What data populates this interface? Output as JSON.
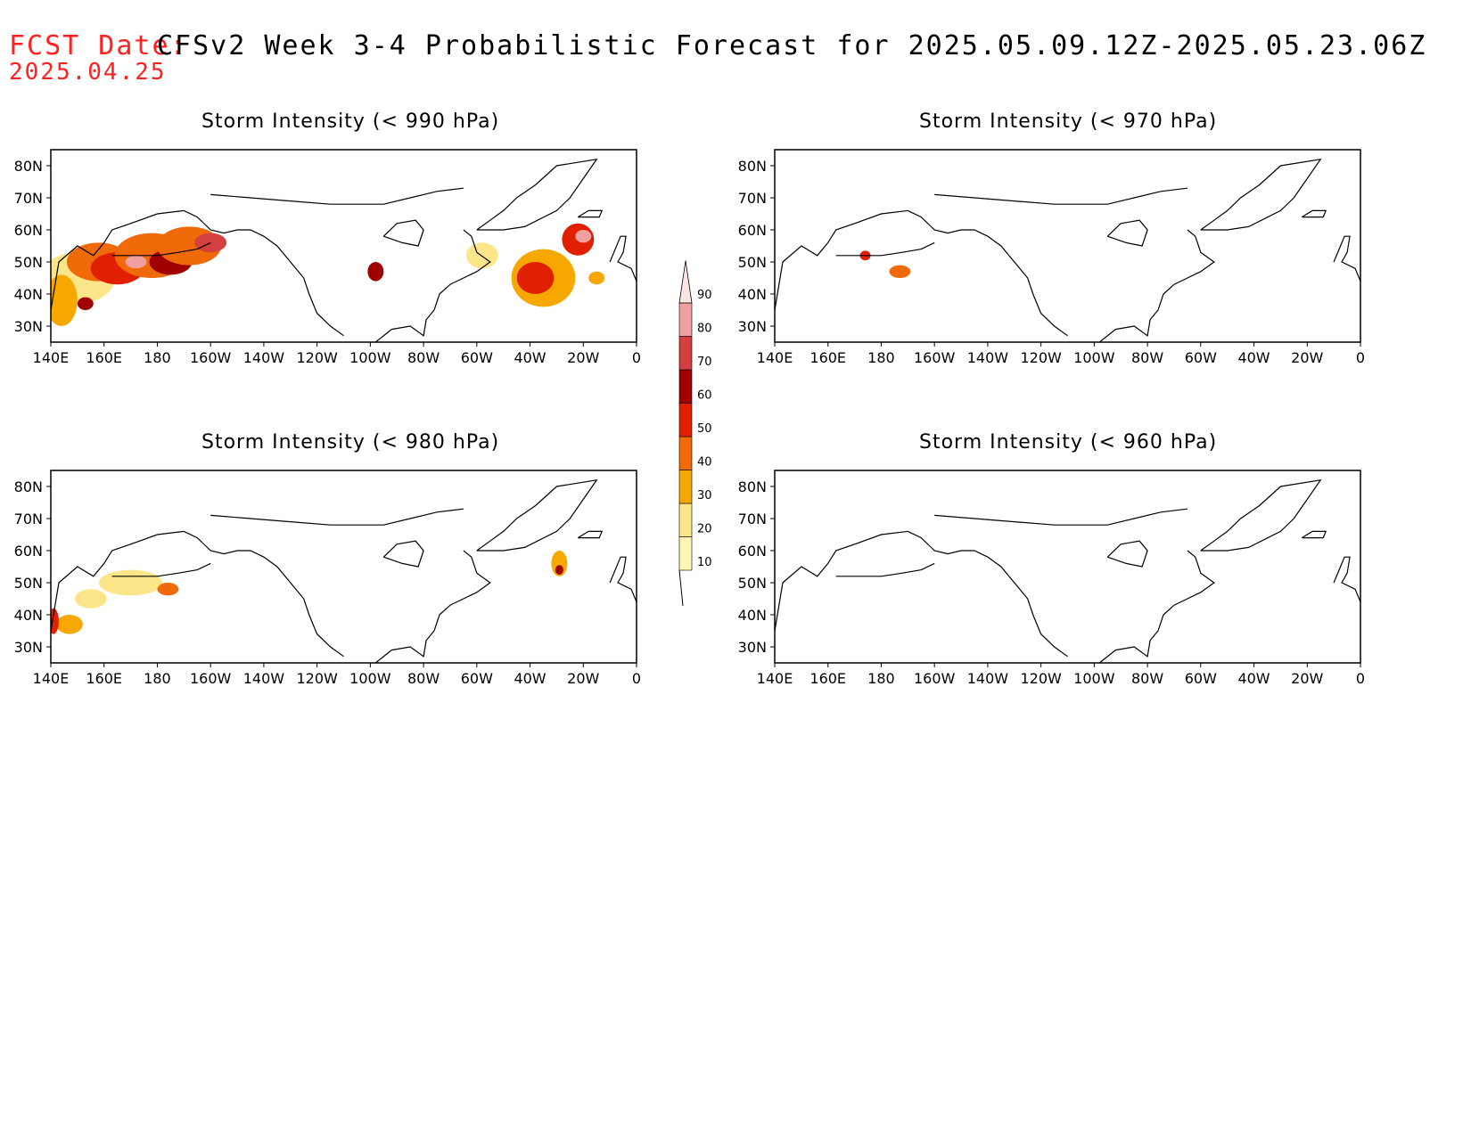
{
  "header": {
    "fcst_label": "FCST Date:",
    "fcst_date": "2025.04.25",
    "title": "CFSv2 Week 3-4 Probabilistic Forecast for 2025.05.09.12Z-2025.05.23.06Z"
  },
  "axes": {
    "lat_ticks": [
      "80N",
      "70N",
      "60N",
      "50N",
      "40N",
      "30N"
    ],
    "lat_values": [
      80,
      70,
      60,
      50,
      40,
      30
    ],
    "lon_ticks": [
      "140E",
      "160E",
      "180",
      "160W",
      "140W",
      "120W",
      "100W",
      "80W",
      "60W",
      "40W",
      "20W",
      "0"
    ],
    "lon_range": [
      140,
      360
    ],
    "lat_range": [
      25,
      85
    ]
  },
  "colorbar": {
    "labels": [
      "10",
      "20",
      "30",
      "40",
      "50",
      "60",
      "70",
      "80",
      "90"
    ],
    "colors": [
      "#fff5b4",
      "#fde68a",
      "#f7a800",
      "#f06a0a",
      "#e02000",
      "#a10000",
      "#d44040",
      "#f0a0a0",
      "#fde4e4"
    ]
  },
  "panels": [
    {
      "title": "Storm Intensity (< 990 hPa)",
      "blobs": [
        {
          "lon": 150,
          "lat": 45,
          "rx": 14,
          "ry": 8,
          "level": 1
        },
        {
          "lon": 158,
          "lat": 50,
          "rx": 12,
          "ry": 6,
          "level": 3
        },
        {
          "lon": 165,
          "lat": 48,
          "rx": 10,
          "ry": 5,
          "level": 4
        },
        {
          "lon": 178,
          "lat": 52,
          "rx": 14,
          "ry": 7,
          "level": 3
        },
        {
          "lon": 185,
          "lat": 50,
          "rx": 8,
          "ry": 4,
          "level": 5
        },
        {
          "lon": 192,
          "lat": 55,
          "rx": 12,
          "ry": 6,
          "level": 3
        },
        {
          "lon": 200,
          "lat": 56,
          "rx": 6,
          "ry": 3,
          "level": 6
        },
        {
          "lon": 172,
          "lat": 50,
          "rx": 4,
          "ry": 2,
          "level": 7
        },
        {
          "lon": 144,
          "lat": 38,
          "rx": 6,
          "ry": 8,
          "level": 2
        },
        {
          "lon": 153,
          "lat": 37,
          "rx": 3,
          "ry": 2,
          "level": 5
        },
        {
          "lon": 262,
          "lat": 47,
          "rx": 3,
          "ry": 3,
          "level": 5
        },
        {
          "lon": 325,
          "lat": 45,
          "rx": 12,
          "ry": 9,
          "level": 2
        },
        {
          "lon": 322,
          "lat": 45,
          "rx": 7,
          "ry": 5,
          "level": 4
        },
        {
          "lon": 338,
          "lat": 57,
          "rx": 6,
          "ry": 5,
          "level": 4
        },
        {
          "lon": 340,
          "lat": 58,
          "rx": 3,
          "ry": 2,
          "level": 7
        },
        {
          "lon": 302,
          "lat": 52,
          "rx": 6,
          "ry": 4,
          "level": 1
        },
        {
          "lon": 345,
          "lat": 45,
          "rx": 3,
          "ry": 2,
          "level": 2
        }
      ]
    },
    {
      "title": "Storm Intensity (< 970 hPa)",
      "blobs": [
        {
          "lon": 187,
          "lat": 47,
          "rx": 4,
          "ry": 2,
          "level": 3
        },
        {
          "lon": 174,
          "lat": 52,
          "rx": 2,
          "ry": 1.5,
          "level": 4
        }
      ]
    },
    {
      "title": "Storm Intensity (< 980 hPa)",
      "blobs": [
        {
          "lon": 170,
          "lat": 50,
          "rx": 12,
          "ry": 4,
          "level": 1
        },
        {
          "lon": 155,
          "lat": 45,
          "rx": 6,
          "ry": 3,
          "level": 1
        },
        {
          "lon": 147,
          "lat": 37,
          "rx": 5,
          "ry": 3,
          "level": 2
        },
        {
          "lon": 141,
          "lat": 38,
          "rx": 2,
          "ry": 4,
          "level": 4
        },
        {
          "lon": 184,
          "lat": 48,
          "rx": 4,
          "ry": 2,
          "level": 3
        },
        {
          "lon": 331,
          "lat": 56,
          "rx": 3,
          "ry": 4,
          "level": 2
        },
        {
          "lon": 331,
          "lat": 54,
          "rx": 1.5,
          "ry": 1.5,
          "level": 5
        }
      ]
    },
    {
      "title": "Storm Intensity (< 960 hPa)",
      "blobs": []
    }
  ]
}
